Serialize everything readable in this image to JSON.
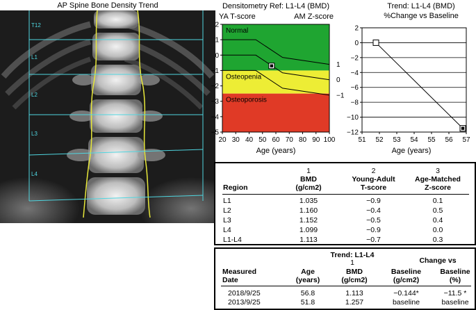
{
  "dexa": {
    "title": "AP Spine Bone Density Trend",
    "vertebra_labels": [
      "T12",
      "L1",
      "L2",
      "L3",
      "L4"
    ]
  },
  "chart_data": [
    {
      "type": "area",
      "title": "Densitometry Ref: L1-L4 (BMD)",
      "ylabel_left": "YA T-score",
      "ylabel_right": "AM Z-score",
      "xlabel": "Age (years)",
      "xlim": [
        20,
        100
      ],
      "ylim": [
        -5,
        2
      ],
      "x_ticks": [
        20,
        30,
        40,
        50,
        60,
        70,
        80,
        90,
        100
      ],
      "y_ticks": [
        2,
        1,
        0,
        -1,
        -2,
        -3,
        -4,
        -5
      ],
      "right_ticks": [
        1,
        0,
        -1
      ],
      "zones": [
        {
          "name": "Normal",
          "from": -1,
          "to": 2,
          "color": "#1fa531"
        },
        {
          "name": "Osteopenia",
          "from": -2.5,
          "to": -1,
          "color": "#eded35"
        },
        {
          "name": "Osteoporosis",
          "from": -5,
          "to": -2.5,
          "color": "#e03a26"
        }
      ],
      "reference_curves": [
        {
          "points": [
            [
              20,
              1
            ],
            [
              45,
              1
            ],
            [
              65,
              -0.15
            ],
            [
              100,
              -0.6
            ]
          ]
        },
        {
          "points": [
            [
              20,
              0
            ],
            [
              45,
              0
            ],
            [
              65,
              -1.15
            ],
            [
              100,
              -1.6
            ]
          ]
        },
        {
          "points": [
            [
              20,
              -1
            ],
            [
              45,
              -1
            ],
            [
              65,
              -2.15
            ],
            [
              100,
              -2.6
            ]
          ]
        }
      ],
      "patient_points": [
        {
          "age": 56.8,
          "t_score": -0.7,
          "style": "filled"
        }
      ]
    },
    {
      "type": "line",
      "title": "Trend: L1-L4 (BMD)",
      "subtitle": "%Change vs Baseline",
      "xlabel": "Age (years)",
      "xlim": [
        51,
        57
      ],
      "ylim": [
        -12,
        2
      ],
      "x_ticks": [
        51,
        52,
        53,
        54,
        55,
        56,
        57
      ],
      "y_ticks": [
        2,
        0,
        -2,
        -4,
        -6,
        -8,
        -10,
        -12
      ],
      "series": [
        {
          "x": [
            51.8,
            56.8
          ],
          "y": [
            0,
            -11.5
          ]
        }
      ],
      "grid": true
    }
  ],
  "table1": {
    "col_numbers": [
      "1",
      "2",
      "3"
    ],
    "headers": {
      "region": "Region",
      "bmd": [
        "BMD",
        "(g/cm2)"
      ],
      "tscore": [
        "Young-Adult",
        "T-score"
      ],
      "zscore": [
        "Age-Matched",
        "Z-score"
      ]
    },
    "rows": [
      {
        "region": "L1",
        "bmd": "1.035",
        "t": "−0.9",
        "z": "0.1"
      },
      {
        "region": "L2",
        "bmd": "1.160",
        "t": "−0.4",
        "z": "0.5"
      },
      {
        "region": "L3",
        "bmd": "1.152",
        "t": "−0.5",
        "z": "0.4"
      },
      {
        "region": "L4",
        "bmd": "1.099",
        "t": "−0.9",
        "z": "0.0"
      },
      {
        "region": "L1-L4",
        "bmd": "1.113",
        "t": "−0.7",
        "z": "0.3"
      }
    ]
  },
  "table2": {
    "title": "Trend: L1-L4",
    "col_number": "1",
    "change_header": "Change vs",
    "headers": {
      "date": [
        "Measured",
        "Date"
      ],
      "age": [
        "Age",
        "(years)"
      ],
      "bmd": [
        "BMD",
        "(g/cm2)"
      ],
      "base_abs": [
        "Baseline",
        "(g/cm2)"
      ],
      "base_pct": [
        "Baseline",
        "(%)"
      ]
    },
    "rows": [
      {
        "date": "2018/9/25",
        "age": "56.8",
        "bmd": "1.113",
        "base_abs": "−0.144*",
        "base_pct": "−11.5 *"
      },
      {
        "date": "2013/9/25",
        "age": "51.8",
        "bmd": "1.257",
        "base_abs": "baseline",
        "base_pct": "baseline"
      }
    ]
  }
}
